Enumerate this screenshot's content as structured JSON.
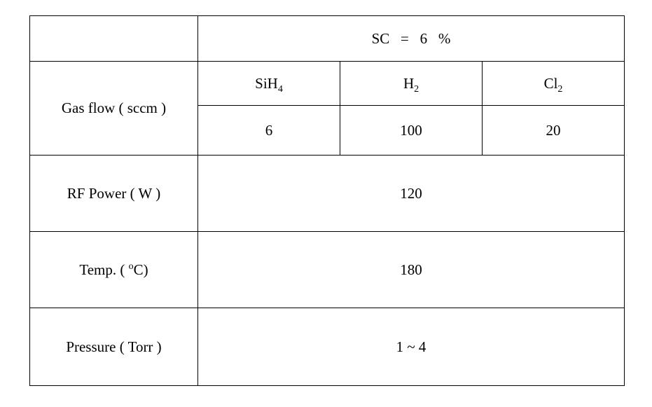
{
  "header": {
    "title_prefix": "SC",
    "title_eq": "=",
    "title_value": "6",
    "title_unit": "%"
  },
  "gasflow": {
    "label": "Gas flow ( sccm )",
    "cols": {
      "sih4_name": "SiH",
      "sih4_sub": "4",
      "h2_name": "H",
      "h2_sub": "2",
      "cl2_name": "Cl",
      "cl2_sub": "2"
    },
    "values": {
      "sih4": "6",
      "h2": "100",
      "cl2": "20"
    }
  },
  "rfpower": {
    "label": "RF Power ( W )",
    "value": "120"
  },
  "temp": {
    "label_prefix": "Temp. ( ",
    "label_degree": "o",
    "label_suffix": "C)",
    "value": "180"
  },
  "pressure": {
    "label": "Pressure ( Torr )",
    "value": "1 ~ 4"
  }
}
